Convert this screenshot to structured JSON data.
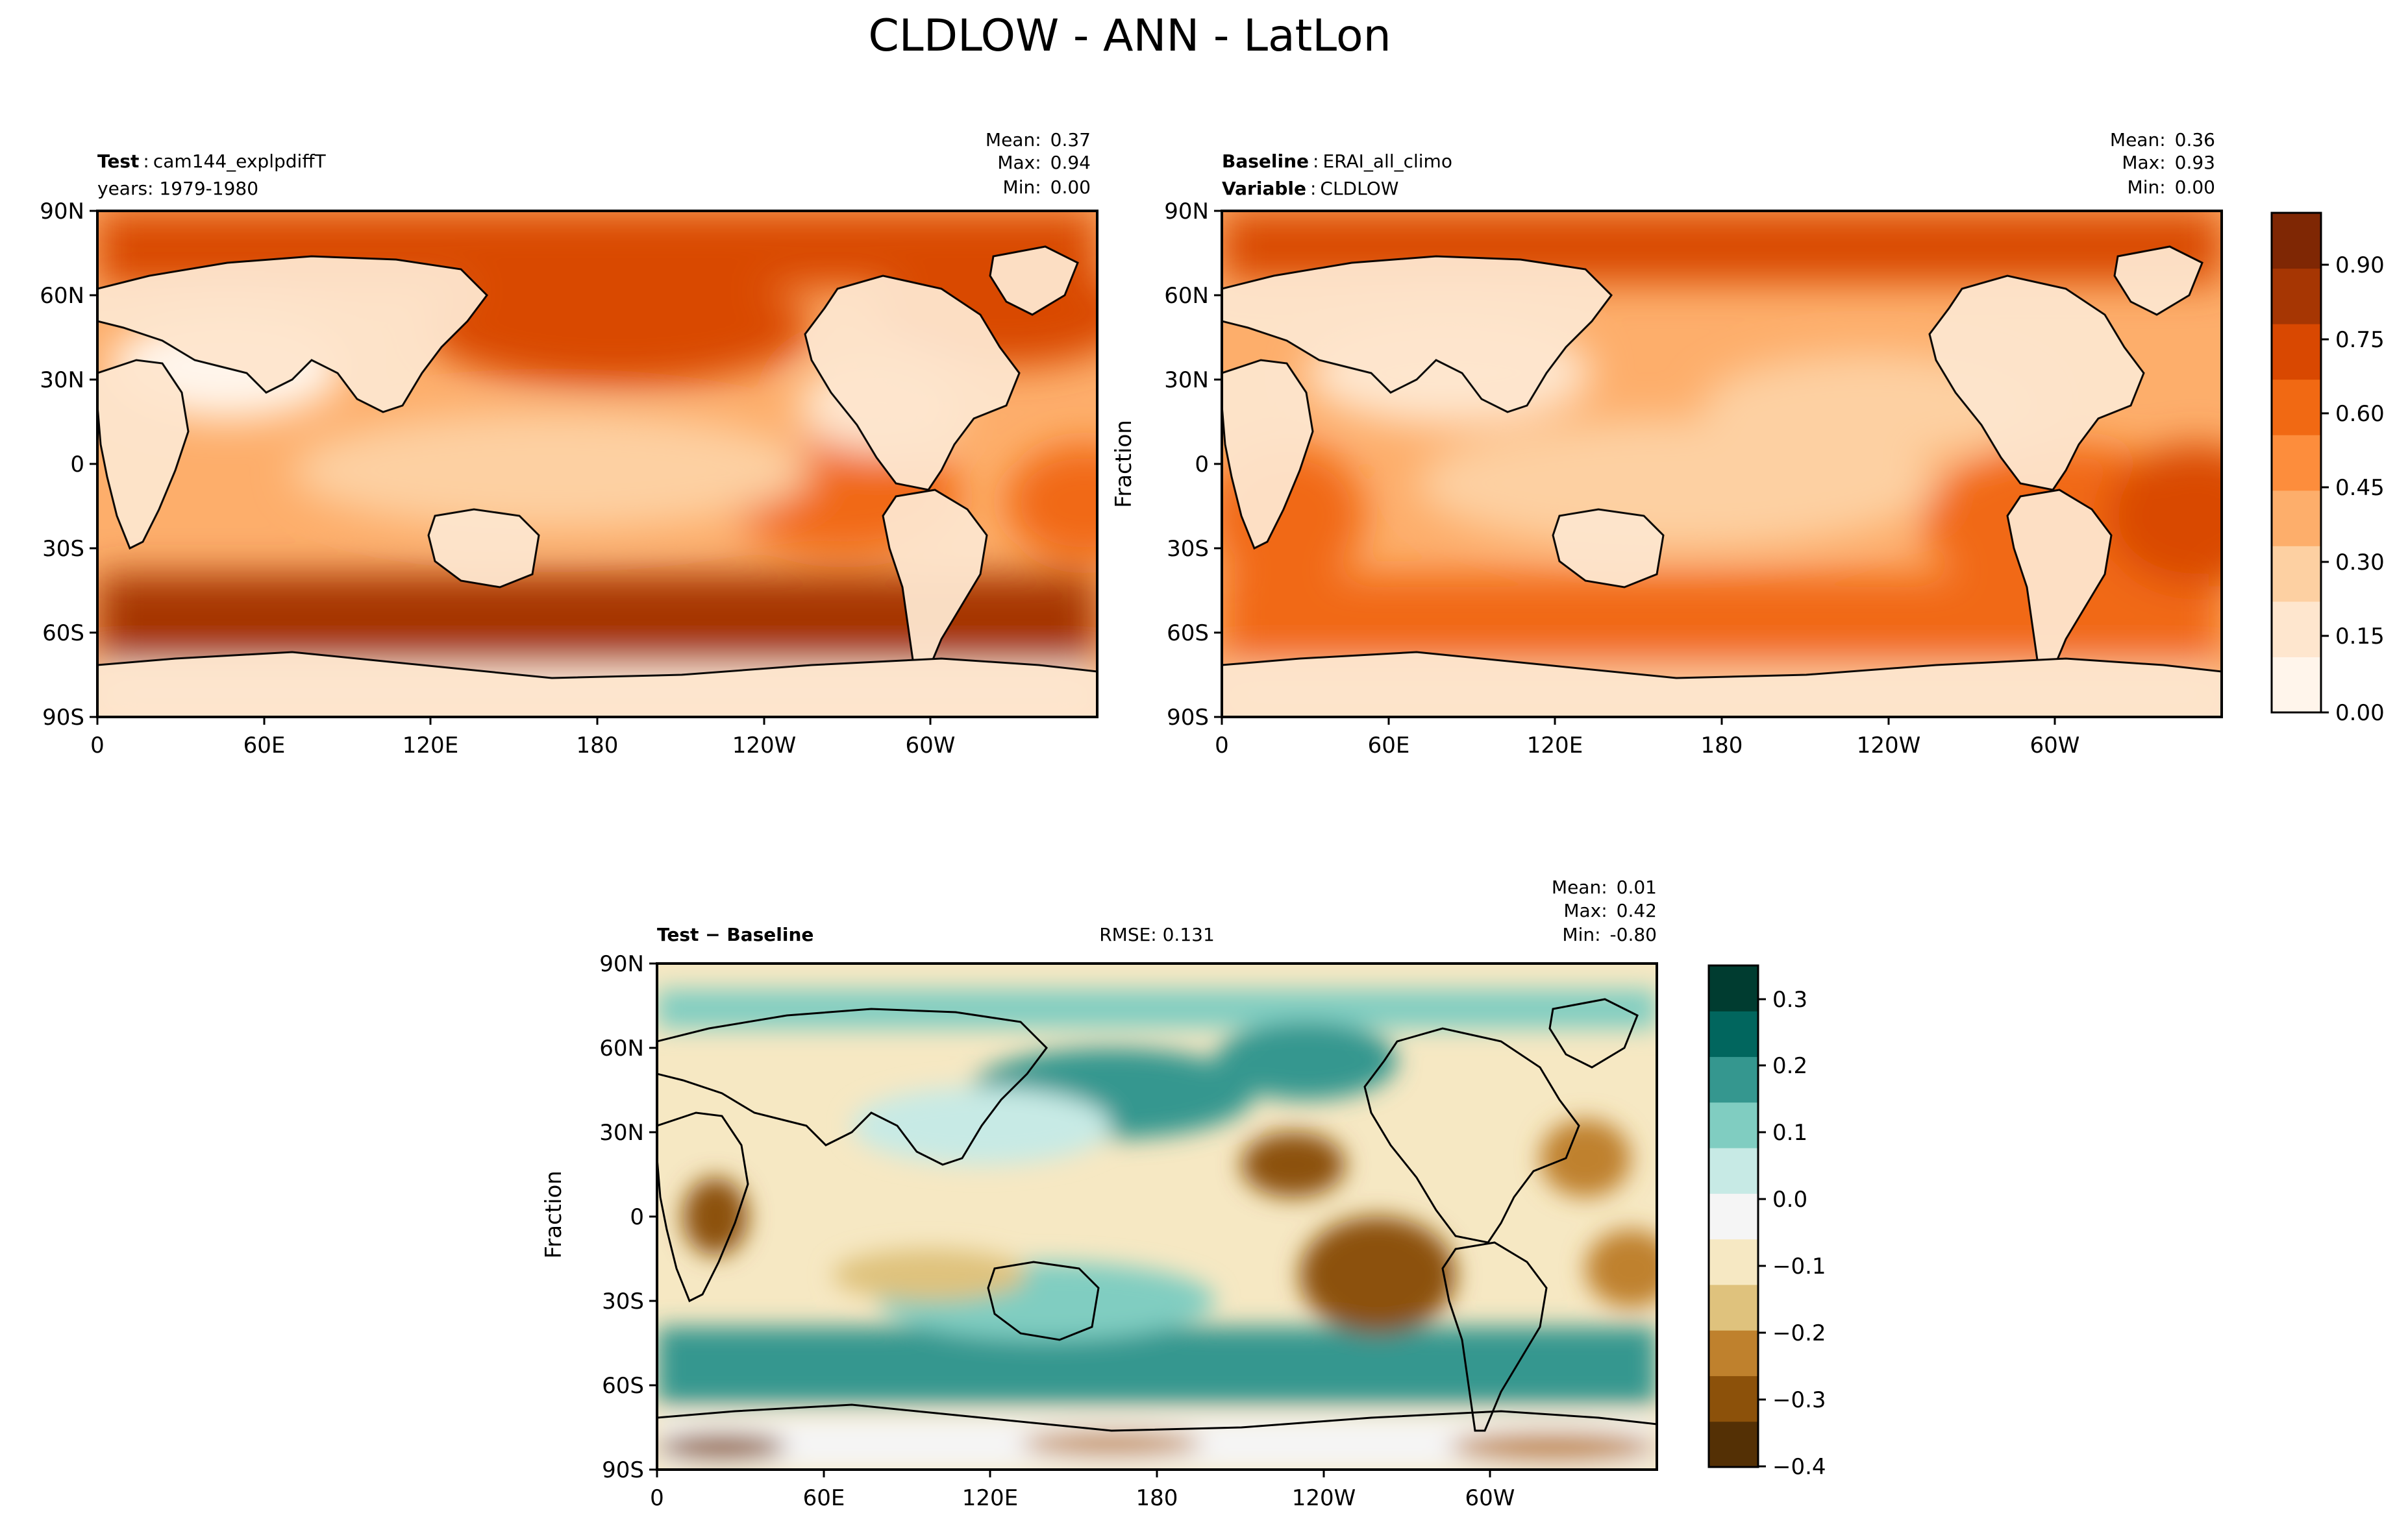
{
  "figure": {
    "title": "CLDLOW - ANN - LatLon"
  },
  "lat_ticks": [
    "90N",
    "60N",
    "30N",
    "0",
    "30S",
    "60S",
    "90S"
  ],
  "lon_ticks": [
    "0",
    "60E",
    "120E",
    "180",
    "120W",
    "60W"
  ],
  "panels": {
    "test": {
      "label_bold": "Test",
      "label_sep": ":",
      "label_value": "cam144_explpdiffT",
      "line2": "years: 1979-1980",
      "stats": [
        {
          "label": "Mean:",
          "value": "0.37"
        },
        {
          "label": "Max:",
          "value": "0.94"
        },
        {
          "label": "Min:",
          "value": "0.00"
        }
      ]
    },
    "baseline": {
      "label_bold": "Baseline",
      "label_sep": ":",
      "label_value": "ERAI_all_climo",
      "line2_bold": "Variable",
      "line2_value": "CLDLOW",
      "ylabel": "Fraction",
      "stats": [
        {
          "label": "Mean:",
          "value": "0.36"
        },
        {
          "label": "Max:",
          "value": "0.93"
        },
        {
          "label": "Min:",
          "value": "0.00"
        }
      ]
    },
    "diff": {
      "label": "Test − Baseline",
      "rmse": "RMSE: 0.131",
      "ylabel": "Fraction",
      "stats": [
        {
          "label": "Mean:",
          "value": "0.01"
        },
        {
          "label": "Max:",
          "value": "0.42"
        },
        {
          "label": "Min:",
          "value": "-0.80"
        }
      ]
    }
  },
  "colorbars": {
    "top": {
      "ticks": [
        "0.90",
        "0.75",
        "0.60",
        "0.45",
        "0.30",
        "0.15",
        "0.00"
      ],
      "colors": [
        "#fff5eb",
        "#fee6ce",
        "#fdd0a2",
        "#fdae6b",
        "#fd8d3c",
        "#f16913",
        "#d94801",
        "#a63603",
        "#7f2704"
      ]
    },
    "diff": {
      "ticks": [
        "0.3",
        "0.2",
        "0.1",
        "0.0",
        "−0.1",
        "−0.2",
        "−0.3",
        "−0.4"
      ],
      "colors": [
        "#543005",
        "#8c510a",
        "#bf812d",
        "#dfc27d",
        "#f6e8c3",
        "#f5f5f5",
        "#c7eae5",
        "#80cdc1",
        "#35978f",
        "#01665e",
        "#003c30"
      ]
    }
  },
  "chart_data": [
    {
      "type": "heatmap",
      "title": "",
      "subtitle": "Test: cam144_explpdiffT, years: 1979-1980",
      "x_tick_labels": [
        "0",
        "60E",
        "120E",
        "180",
        "120W",
        "60W"
      ],
      "y_tick_labels": [
        "90N",
        "60N",
        "30N",
        "0",
        "30S",
        "60S",
        "90S"
      ],
      "xlim": [
        0,
        360
      ],
      "ylim": [
        -90,
        90
      ],
      "colorbar": {
        "range": [
          0.0,
          0.95
        ],
        "ticks": [
          0.0,
          0.15,
          0.3,
          0.45,
          0.6,
          0.75,
          0.9
        ]
      },
      "stats": {
        "mean": 0.37,
        "max": 0.94,
        "min": 0.0
      }
    },
    {
      "type": "heatmap",
      "subtitle": "Baseline: ERAI_all_climo, Variable: CLDLOW",
      "ylabel": "Fraction",
      "x_tick_labels": [
        "0",
        "60E",
        "120E",
        "180",
        "120W",
        "60W"
      ],
      "y_tick_labels": [
        "90N",
        "60N",
        "30N",
        "0",
        "30S",
        "60S",
        "90S"
      ],
      "xlim": [
        0,
        360
      ],
      "ylim": [
        -90,
        90
      ],
      "colorbar": {
        "range": [
          0.0,
          0.95
        ],
        "ticks": [
          0.0,
          0.15,
          0.3,
          0.45,
          0.6,
          0.75,
          0.9
        ]
      },
      "stats": {
        "mean": 0.36,
        "max": 0.93,
        "min": 0.0
      }
    },
    {
      "type": "heatmap",
      "subtitle": "Test − Baseline",
      "ylabel": "Fraction",
      "x_tick_labels": [
        "0",
        "60E",
        "120E",
        "180",
        "120W",
        "60W"
      ],
      "y_tick_labels": [
        "90N",
        "60N",
        "30N",
        "0",
        "30S",
        "60S",
        "90S"
      ],
      "xlim": [
        0,
        360
      ],
      "ylim": [
        -90,
        90
      ],
      "colorbar": {
        "range": [
          -0.4,
          0.35
        ],
        "ticks": [
          -0.4,
          -0.3,
          -0.2,
          -0.1,
          0.0,
          0.1,
          0.2,
          0.3
        ]
      },
      "stats": {
        "mean": 0.01,
        "max": 0.42,
        "min": -0.8,
        "rmse": 0.131
      }
    }
  ]
}
